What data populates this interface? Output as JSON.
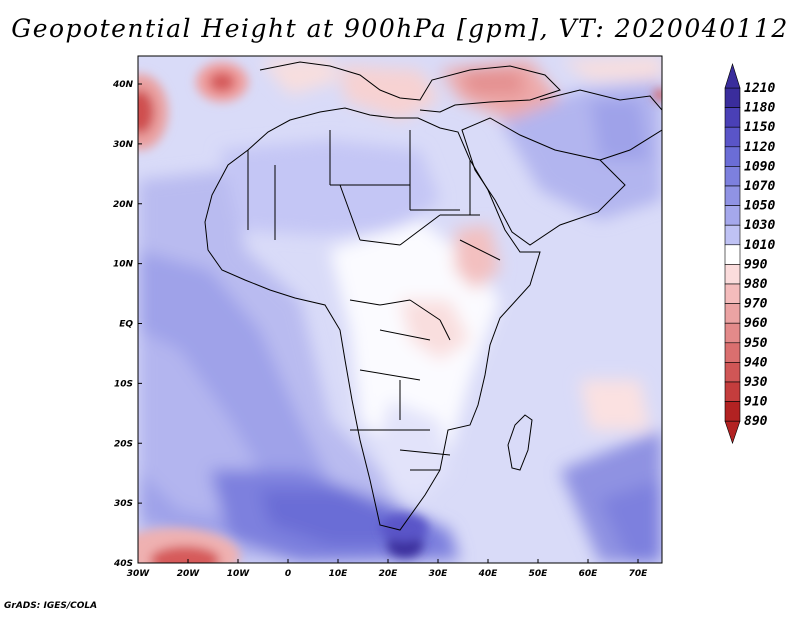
{
  "title": "Geopotential Height at 900hPa [gpm], VT: 2020040112",
  "footer": "GrADS: IGES/COLA",
  "lon_labels": [
    "30W",
    "20W",
    "10W",
    "0",
    "10E",
    "20E",
    "30E",
    "40E",
    "50E",
    "60E",
    "70E"
  ],
  "lat_labels": [
    "40N",
    "30N",
    "20N",
    "10N",
    "EQ",
    "10S",
    "20S",
    "30S",
    "40S"
  ],
  "colorbar": {
    "labels": [
      "1210",
      "1180",
      "1150",
      "1120",
      "1090",
      "1070",
      "1050",
      "1030",
      "1010",
      "990",
      "980",
      "970",
      "960",
      "950",
      "940",
      "930",
      "910",
      "890"
    ],
    "colors": [
      "#3a2d9c",
      "#4a40b6",
      "#5a55c8",
      "#6b6dd6",
      "#7d80de",
      "#9093e4",
      "#a5a8ec",
      "#bfc2f4",
      "#dcdefb",
      "#ffffff",
      "#fbdcdc",
      "#f4bcbc",
      "#eba3a3",
      "#e38a8a",
      "#da6f6f",
      "#d05656",
      "#c43d3d",
      "#b22222"
    ]
  },
  "colors": {
    "frame": "#000000",
    "ocean_base": "#d9dbf8",
    "coast": "#000000"
  }
}
